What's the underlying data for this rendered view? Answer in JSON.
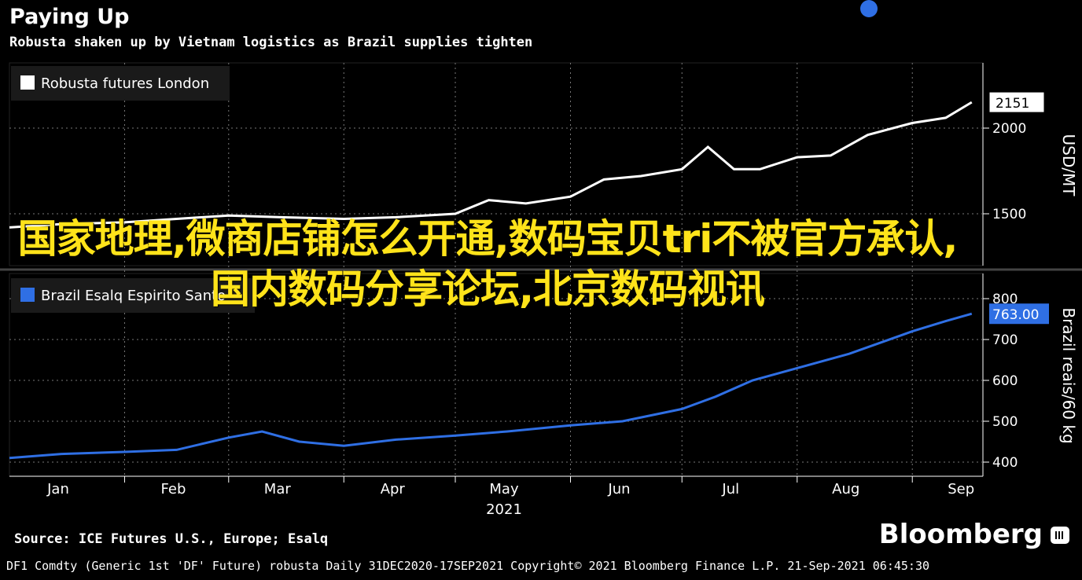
{
  "header": {
    "title": "Paying Up",
    "subtitle": "Robusta shaken up by Vietnam logistics as Brazil supplies tighten"
  },
  "overlay_text": "国家地理,微商店铺怎么开通,数码宝贝tri不被官方承认,国内数码分享论坛,北京数码视讯",
  "source": "Source: ICE Futures U.S., Europe; Esalq",
  "brand": "Bloomberg",
  "footer": "DF1 Comdty (Generic 1st 'DF' Future) robusta  Daily 31DEC2020-17SEP2021  Copyright© 2021 Bloomberg Finance L.P.  21-Sep-2021 06:45:30",
  "colors": {
    "background": "#000000",
    "robusta": "#ffffff",
    "brazil": "#2f6fe4",
    "overlay": "#ffe31a"
  },
  "chart_data": [
    {
      "type": "line",
      "legend": [
        "Robusta futures London"
      ],
      "ylabel": "USD/MT",
      "yticks": [
        1500,
        2000
      ],
      "last_value_label": "2151",
      "x_ticks": [
        "Jan",
        "Feb",
        "Mar",
        "Apr",
        "May",
        "Jun",
        "Jul",
        "Aug",
        "Sep"
      ],
      "x_year": "2021",
      "series": [
        {
          "name": "Robusta futures London",
          "x": [
            "2021-01-01",
            "2021-01-15",
            "2021-02-01",
            "2021-02-15",
            "2021-03-01",
            "2021-03-15",
            "2021-04-01",
            "2021-04-15",
            "2021-05-01",
            "2021-05-10",
            "2021-05-20",
            "2021-06-01",
            "2021-06-10",
            "2021-06-20",
            "2021-07-01",
            "2021-07-08",
            "2021-07-15",
            "2021-07-22",
            "2021-08-01",
            "2021-08-10",
            "2021-08-20",
            "2021-09-01",
            "2021-09-10",
            "2021-09-17"
          ],
          "values": [
            1420,
            1440,
            1450,
            1470,
            1490,
            1480,
            1470,
            1480,
            1500,
            1580,
            1560,
            1600,
            1700,
            1720,
            1760,
            1890,
            1760,
            1760,
            1830,
            1840,
            1960,
            2030,
            2060,
            2151
          ]
        }
      ]
    },
    {
      "type": "line",
      "legend": [
        "Brazil Esalq Espirito Santo"
      ],
      "ylabel": "Brazil reais/60 kg",
      "yticks": [
        400,
        500,
        600,
        700,
        800
      ],
      "last_value_label": "763.00",
      "x_ticks": [
        "Jan",
        "Feb",
        "Mar",
        "Apr",
        "May",
        "Jun",
        "Jul",
        "Aug",
        "Sep"
      ],
      "x_year": "2021",
      "series": [
        {
          "name": "Brazil Esalq Espirito Santo",
          "x": [
            "2021-01-01",
            "2021-01-15",
            "2021-02-01",
            "2021-02-15",
            "2021-03-01",
            "2021-03-10",
            "2021-03-20",
            "2021-04-01",
            "2021-04-15",
            "2021-05-01",
            "2021-05-15",
            "2021-06-01",
            "2021-06-15",
            "2021-07-01",
            "2021-07-10",
            "2021-07-20",
            "2021-08-01",
            "2021-08-15",
            "2021-09-01",
            "2021-09-10",
            "2021-09-17"
          ],
          "values": [
            410,
            420,
            425,
            430,
            460,
            475,
            450,
            440,
            455,
            465,
            475,
            490,
            500,
            530,
            560,
            600,
            630,
            665,
            720,
            745,
            763
          ]
        }
      ]
    }
  ]
}
